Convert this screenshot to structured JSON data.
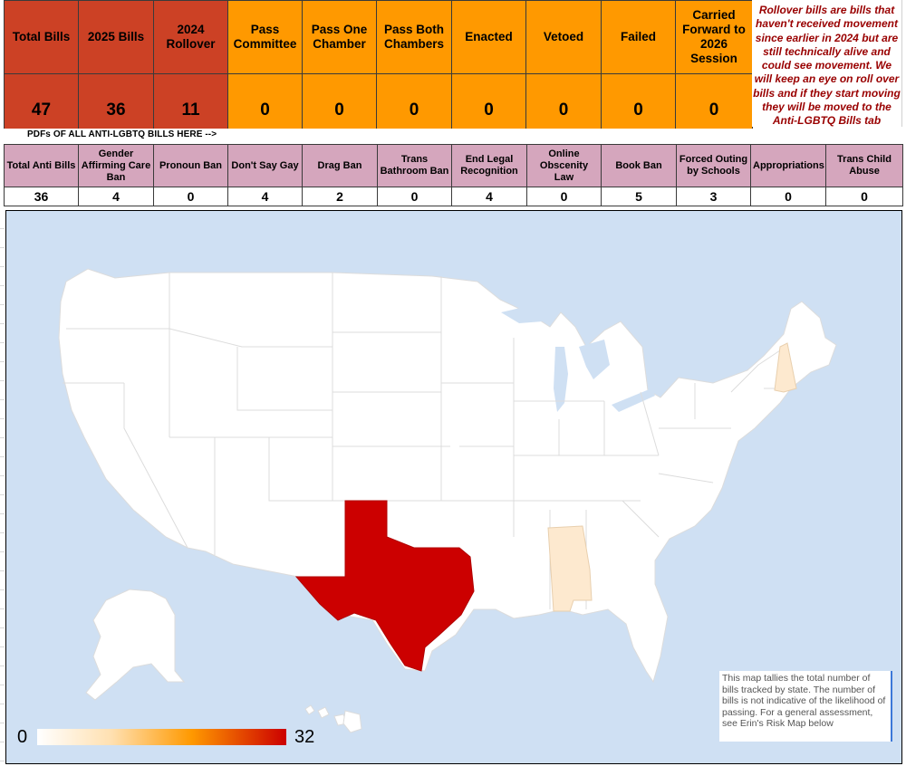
{
  "summary": {
    "headers": [
      "Total Bills",
      "2025 Bills",
      "2024 Rollover",
      "Pass Committee",
      "Pass One Chamber",
      "Pass Both Chambers",
      "Enacted",
      "Vetoed",
      "Failed",
      "Carried Forward to 2026 Session"
    ],
    "values": [
      "47",
      "36",
      "11",
      "0",
      "0",
      "0",
      "0",
      "0",
      "0",
      "0"
    ],
    "rollover_note": "Rollover bills are bills that haven't received movement since earlier in 2024 but are still technically alive and could see movement. We will keep an eye on roll over bills and if they start moving they will be moved to the Anti-LGBTQ Bills tab"
  },
  "pdf_link": "PDFs OF ALL ANTI-LGBTQ BILLS HERE -->",
  "categories": {
    "headers": [
      "Total Anti Bills",
      "Gender Affirming Care Ban",
      "Pronoun Ban",
      "Don't Say Gay",
      "Drag Ban",
      "Trans Bathroom Ban",
      "End Legal Recognition",
      "Online Obscenity Law",
      "Book Ban",
      "Forced Outing by Schools",
      "Appropriations",
      "Trans Child Abuse"
    ],
    "values": [
      "36",
      "4",
      "0",
      "4",
      "2",
      "0",
      "4",
      "0",
      "5",
      "3",
      "0",
      "0"
    ]
  },
  "map": {
    "legend_min": "0",
    "legend_max": "32",
    "caption": "This map tallies the total number of bills tracked by state. The number of bills is not indicative of the likelihood of passing. For a general assessment, see Erin's Risk Map below",
    "colors": {
      "ocean": "#cfe0f3",
      "land": "#ffffff",
      "border": "#dcdcdc",
      "high": "#cc0000",
      "low": "#fde9cf"
    },
    "highlighted_states": [
      {
        "state": "Texas",
        "level": "high"
      },
      {
        "state": "New Hampshire",
        "level": "low"
      },
      {
        "state": "Alabama",
        "level": "low"
      }
    ]
  }
}
